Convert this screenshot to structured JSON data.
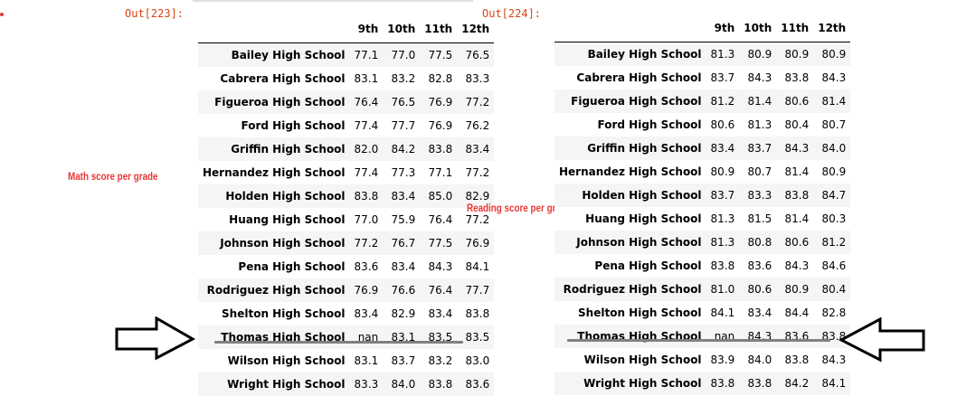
{
  "cells": [
    {
      "prompt": "Out[223]:",
      "annotation": "Math score per grade",
      "columns": [
        "9th",
        "10th",
        "11th",
        "12th"
      ],
      "rows": [
        {
          "school": "Bailey High School",
          "values": [
            "77.1",
            "77.0",
            "77.5",
            "76.5"
          ]
        },
        {
          "school": "Cabrera High School",
          "values": [
            "83.1",
            "83.2",
            "82.8",
            "83.3"
          ]
        },
        {
          "school": "Figueroa High School",
          "values": [
            "76.4",
            "76.5",
            "76.9",
            "77.2"
          ]
        },
        {
          "school": "Ford High School",
          "values": [
            "77.4",
            "77.7",
            "76.9",
            "76.2"
          ]
        },
        {
          "school": "Griffin High School",
          "values": [
            "82.0",
            "84.2",
            "83.8",
            "83.4"
          ]
        },
        {
          "school": "Hernandez High School",
          "values": [
            "77.4",
            "77.3",
            "77.1",
            "77.2"
          ]
        },
        {
          "school": "Holden High School",
          "values": [
            "83.8",
            "83.4",
            "85.0",
            "82.9"
          ]
        },
        {
          "school": "Huang High School",
          "values": [
            "77.0",
            "75.9",
            "76.4",
            "77.2"
          ]
        },
        {
          "school": "Johnson High School",
          "values": [
            "77.2",
            "76.7",
            "77.5",
            "76.9"
          ]
        },
        {
          "school": "Pena High School",
          "values": [
            "83.6",
            "83.4",
            "84.3",
            "84.1"
          ]
        },
        {
          "school": "Rodriguez High School",
          "values": [
            "76.9",
            "76.6",
            "76.4",
            "77.7"
          ]
        },
        {
          "school": "Shelton High School",
          "values": [
            "83.4",
            "82.9",
            "83.4",
            "83.8"
          ]
        },
        {
          "school": "Thomas High School",
          "values": [
            "nan",
            "83.1",
            "83.5",
            "83.5"
          ]
        },
        {
          "school": "Wilson High School",
          "values": [
            "83.1",
            "83.7",
            "83.2",
            "83.0"
          ]
        },
        {
          "school": "Wright High School",
          "values": [
            "83.3",
            "84.0",
            "83.8",
            "83.6"
          ]
        }
      ]
    },
    {
      "prompt": "Out[224]:",
      "annotation": "Reading score per grade",
      "columns": [
        "9th",
        "10th",
        "11th",
        "12th"
      ],
      "rows": [
        {
          "school": "Bailey High School",
          "values": [
            "81.3",
            "80.9",
            "80.9",
            "80.9"
          ]
        },
        {
          "school": "Cabrera High School",
          "values": [
            "83.7",
            "84.3",
            "83.8",
            "84.3"
          ]
        },
        {
          "school": "Figueroa High School",
          "values": [
            "81.2",
            "81.4",
            "80.6",
            "81.4"
          ]
        },
        {
          "school": "Ford High School",
          "values": [
            "80.6",
            "81.3",
            "80.4",
            "80.7"
          ]
        },
        {
          "school": "Griffin High School",
          "values": [
            "83.4",
            "83.7",
            "84.3",
            "84.0"
          ]
        },
        {
          "school": "Hernandez High School",
          "values": [
            "80.9",
            "80.7",
            "81.4",
            "80.9"
          ]
        },
        {
          "school": "Holden High School",
          "values": [
            "83.7",
            "83.3",
            "83.8",
            "84.7"
          ]
        },
        {
          "school": "Huang High School",
          "values": [
            "81.3",
            "81.5",
            "81.4",
            "80.3"
          ]
        },
        {
          "school": "Johnson High School",
          "values": [
            "81.3",
            "80.8",
            "80.6",
            "81.2"
          ]
        },
        {
          "school": "Pena High School",
          "values": [
            "83.8",
            "83.6",
            "84.3",
            "84.6"
          ]
        },
        {
          "school": "Rodriguez High School",
          "values": [
            "81.0",
            "80.6",
            "80.9",
            "80.4"
          ]
        },
        {
          "school": "Shelton High School",
          "values": [
            "84.1",
            "83.4",
            "84.4",
            "82.8"
          ]
        },
        {
          "school": "Thomas High School",
          "values": [
            "nan",
            "84.3",
            "83.6",
            "83.8"
          ]
        },
        {
          "school": "Wilson High School",
          "values": [
            "83.9",
            "84.0",
            "83.8",
            "84.3"
          ]
        },
        {
          "school": "Wright High School",
          "values": [
            "83.8",
            "83.8",
            "84.2",
            "84.1"
          ]
        }
      ]
    }
  ],
  "colors": {
    "prompt": "#d84315",
    "annotation": "#e53935",
    "stripe": "#f5f5f5",
    "highlight_line": "#808080"
  }
}
